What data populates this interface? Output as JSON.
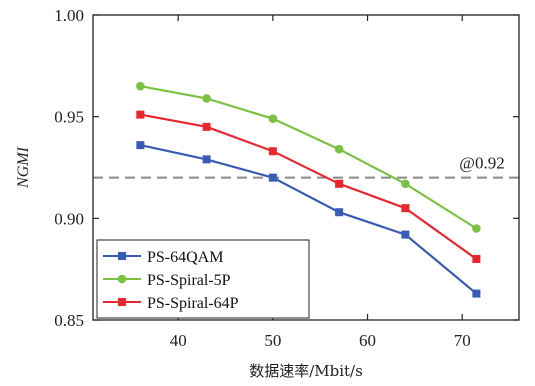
{
  "chart_data": {
    "type": "line",
    "title": "",
    "xlabel": "数据速率/Mbit/s",
    "ylabel": "NGMI",
    "xlim": [
      31,
      76
    ],
    "ylim": [
      0.85,
      1.0
    ],
    "xticks": [
      40,
      50,
      60,
      70
    ],
    "yticks": [
      "0.85",
      "0.90",
      "0.95",
      "1.00"
    ],
    "x": [
      36,
      43,
      50,
      57,
      64,
      71.5
    ],
    "grid": false,
    "legend_position": "bottom-left",
    "series": [
      {
        "name": "PS-64QAM",
        "color": "#3a5bb5",
        "marker": "square",
        "values": [
          0.936,
          0.929,
          0.92,
          0.903,
          0.892,
          0.863
        ]
      },
      {
        "name": "PS-Spiral-5P",
        "color": "#7cc242",
        "marker": "circle",
        "values": [
          0.965,
          0.959,
          0.949,
          0.934,
          0.917,
          0.895
        ]
      },
      {
        "name": "PS-Spiral-64P",
        "color": "#e8262e",
        "marker": "square",
        "values": [
          0.951,
          0.945,
          0.933,
          0.917,
          0.905,
          0.88
        ]
      }
    ],
    "reference_line": {
      "y": 0.92,
      "label": "@0.92",
      "color": "#888888"
    }
  }
}
